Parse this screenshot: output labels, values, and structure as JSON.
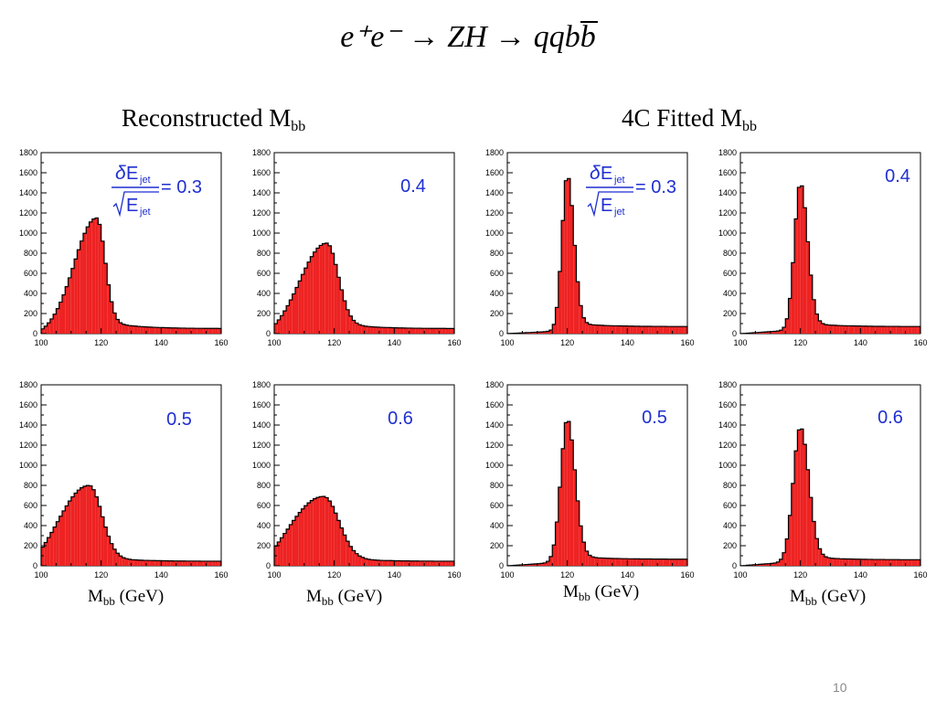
{
  "title": {
    "part1": "e⁺e⁻ → ZH → qqb",
    "part2": "b"
  },
  "sections": {
    "reconstructed": {
      "label": "Reconstructed M",
      "sub": "bb"
    },
    "fitted": {
      "label": "4C Fitted M",
      "sub": "bb"
    }
  },
  "xaxis_caption": {
    "main": "M",
    "sub": "bb",
    "unit": " (GeV)"
  },
  "formula": {
    "delta": "δ",
    "E": "E",
    "jet": "jet",
    "eq": "= 0.3"
  },
  "page_number": "10",
  "colors": {
    "fill": "#ee2222",
    "outline": "#000000",
    "annotation": "#1f2fd0"
  },
  "chart_data": [
    {
      "type": "bar",
      "id": "reco-03",
      "annotation": "0.3",
      "xlim": [
        100,
        160
      ],
      "ylim": [
        0,
        1800
      ],
      "xticks": [
        "100",
        "120",
        "140",
        "160"
      ],
      "yticks": [
        "0",
        "200",
        "400",
        "600",
        "800",
        "1000",
        "1200",
        "1400",
        "1600",
        "1800"
      ],
      "peak_x": 118.5,
      "peak_y": 1150,
      "shape": {
        "left": 180,
        "right": 90,
        "tail": 50,
        "wl": 7,
        "wr": 2.8
      }
    },
    {
      "type": "bar",
      "id": "reco-04",
      "annotation": "0.4",
      "xlim": [
        100,
        160
      ],
      "ylim": [
        0,
        1800
      ],
      "xticks": [
        "100",
        "120",
        "140",
        "160"
      ],
      "yticks": [
        "0",
        "200",
        "400",
        "600",
        "800",
        "1000",
        "1200",
        "1400",
        "1600",
        "1800"
      ],
      "peak_x": 117.5,
      "peak_y": 900,
      "shape": {
        "left": 200,
        "right": 80,
        "tail": 50,
        "wl": 8,
        "wr": 3.8
      }
    },
    {
      "type": "bar",
      "id": "fit-03",
      "annotation": "0.3",
      "xlim": [
        100,
        160
      ],
      "ylim": [
        0,
        1800
      ],
      "xticks": [
        "100",
        "120",
        "140",
        "160"
      ],
      "yticks": [
        "0",
        "200",
        "400",
        "600",
        "800",
        "1000",
        "1200",
        "1400",
        "1600",
        "1800"
      ],
      "peak_x": 120,
      "peak_y": 1580,
      "shape": {
        "left": 30,
        "right": 40,
        "tail": 70,
        "wl": 1.8,
        "wr": 2.2
      }
    },
    {
      "type": "bar",
      "id": "fit-04",
      "annotation": "0.4",
      "xlim": [
        100,
        160
      ],
      "ylim": [
        0,
        1800
      ],
      "xticks": [
        "100",
        "120",
        "140",
        "160"
      ],
      "yticks": [
        "0",
        "200",
        "400",
        "600",
        "800",
        "1000",
        "1200",
        "1400",
        "1600",
        "1800"
      ],
      "peak_x": 120,
      "peak_y": 1500,
      "shape": {
        "left": 40,
        "right": 40,
        "tail": 70,
        "wl": 2.0,
        "wr": 2.4
      }
    },
    {
      "type": "bar",
      "id": "reco-05",
      "annotation": "0.5",
      "xlim": [
        100,
        160
      ],
      "ylim": [
        0,
        1800
      ],
      "xticks": [
        "100",
        "120",
        "140",
        "160"
      ],
      "yticks": [
        "0",
        "200",
        "400",
        "600",
        "800",
        "1000",
        "1200",
        "1400",
        "1600",
        "1800"
      ],
      "peak_x": 116,
      "peak_y": 800,
      "shape": {
        "left": 200,
        "right": 60,
        "tail": 45,
        "wl": 9,
        "wr": 4.2
      }
    },
    {
      "type": "bar",
      "id": "reco-06",
      "annotation": "0.6",
      "xlim": [
        100,
        160
      ],
      "ylim": [
        0,
        1800
      ],
      "xticks": [
        "100",
        "120",
        "140",
        "160"
      ],
      "yticks": [
        "0",
        "200",
        "400",
        "600",
        "800",
        "1000",
        "1200",
        "1400",
        "1600",
        "1800"
      ],
      "peak_x": 116.5,
      "peak_y": 690,
      "shape": {
        "left": 210,
        "right": 60,
        "tail": 45,
        "wl": 10,
        "wr": 5
      }
    },
    {
      "type": "bar",
      "id": "fit-05",
      "annotation": "0.5",
      "xlim": [
        100,
        160
      ],
      "ylim": [
        0,
        1800
      ],
      "xticks": [
        "100",
        "120",
        "140",
        "160"
      ],
      "yticks": [
        "0",
        "200",
        "400",
        "600",
        "800",
        "1000",
        "1200",
        "1400",
        "1600",
        "1800"
      ],
      "peak_x": 120,
      "peak_y": 1460,
      "shape": {
        "left": 40,
        "right": 40,
        "tail": 65,
        "wl": 2.2,
        "wr": 2.6
      }
    },
    {
      "type": "bar",
      "id": "fit-06",
      "annotation": "0.6",
      "xlim": [
        100,
        160
      ],
      "ylim": [
        0,
        1800
      ],
      "xticks": [
        "100",
        "120",
        "140",
        "160"
      ],
      "yticks": [
        "0",
        "200",
        "400",
        "600",
        "800",
        "1000",
        "1200",
        "1400",
        "1600",
        "1800"
      ],
      "peak_x": 120,
      "peak_y": 1380,
      "shape": {
        "left": 45,
        "right": 40,
        "tail": 60,
        "wl": 2.4,
        "wr": 2.8
      }
    }
  ]
}
